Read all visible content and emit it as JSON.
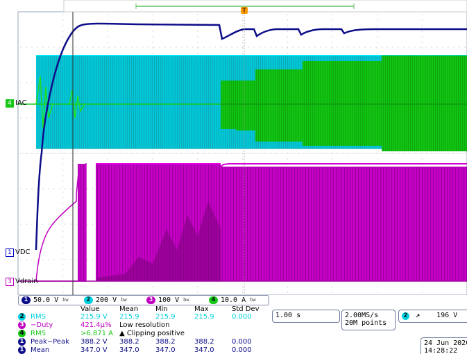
{
  "channels": {
    "c1": {
      "num": "1",
      "scale": "50.0 V",
      "color": "#0d0d8a",
      "label": "VDC"
    },
    "c2": {
      "num": "2",
      "scale": "200 V",
      "color": "#00d0e0",
      "label": "IAC"
    },
    "c3": {
      "num": "3",
      "scale": "100 V",
      "color": "#c000c0",
      "label": "Vdrain"
    },
    "c4": {
      "num": "4",
      "scale": "10.0 A",
      "color": "#18c818"
    }
  },
  "bw_icon": "bw",
  "measurements": {
    "headers": [
      "Value",
      "Mean",
      "Min",
      "Max",
      "Std Dev"
    ],
    "rows": [
      {
        "ch": "2",
        "name": "RMS",
        "value": "215.9 V",
        "mean": "215.9",
        "min": "215.9",
        "max": "215.9",
        "std": "0.000",
        "color": "#00d0e0"
      },
      {
        "ch": "3",
        "name": "−Duty",
        "value": "421.4μ%",
        "mean": "Low resolution",
        "min": "",
        "max": "",
        "std": "",
        "color": "#c000c0"
      },
      {
        "ch": "4",
        "name": "RMS",
        "value": ">6.871 A",
        "mean": "▲ Clipping positive",
        "min": "",
        "max": "",
        "std": "",
        "color": "#18c818"
      },
      {
        "ch": "1",
        "name": "Peak−Peak",
        "value": "388.2 V",
        "mean": "388.2",
        "min": "388.2",
        "max": "388.2",
        "std": "0.000",
        "color": "#0d0d8a"
      },
      {
        "ch": "1",
        "name": "Mean",
        "value": "347.0 V",
        "mean": "347.0",
        "min": "347.0",
        "max": "347.0",
        "std": "0.000",
        "color": "#0d0d8a"
      }
    ]
  },
  "timebase": {
    "scale": "1.00 s",
    "sample_rate": "2.00MS/s",
    "record_length": "20M points"
  },
  "trigger": {
    "channel": "2",
    "slope_icon": "rising-edge",
    "level": "196 V"
  },
  "datetime": {
    "date": "24 Jun 2020",
    "time": "14:28:22"
  },
  "trigger_marker": "T",
  "colors": {
    "grid": "#b8b8b8",
    "border": "#6c7a9c"
  }
}
